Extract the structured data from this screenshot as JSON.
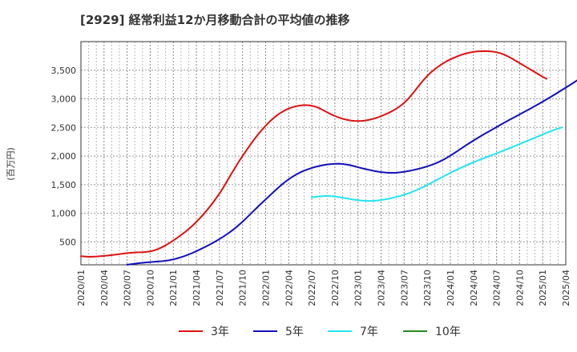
{
  "chart_data": {
    "type": "line",
    "title": "[2929]  経常利益12か月移動合計の平均値の推移",
    "ylabel": "(百万円)",
    "xlabel": "",
    "ylim": [
      100,
      4000
    ],
    "yticks": [
      500,
      1000,
      1500,
      2000,
      2500,
      3000,
      3500
    ],
    "ytick_labels": [
      "500",
      "1,000",
      "1,500",
      "2,000",
      "2,500",
      "3,000",
      "3,500"
    ],
    "x_start": "2020/01",
    "x_end": "2025/04",
    "xtick_labels": [
      "2020/01",
      "2020/04",
      "2020/07",
      "2020/10",
      "2021/01",
      "2021/04",
      "2021/07",
      "2021/10",
      "2022/01",
      "2022/04",
      "2022/07",
      "2022/10",
      "2023/01",
      "2023/04",
      "2023/07",
      "2023/10",
      "2024/01",
      "2024/04",
      "2024/07",
      "2024/10",
      "2025/01",
      "2025/04"
    ],
    "grid": true,
    "legend_position": "bottom",
    "series": [
      {
        "name": "3年",
        "color": "#dd1111",
        "start": "2020/01",
        "values": [
          250,
          245,
          240,
          242,
          245,
          250,
          255,
          262,
          270,
          278,
          286,
          295,
          305,
          310,
          315,
          318,
          320,
          325,
          335,
          350,
          375,
          405,
          440,
          480,
          525,
          570,
          620,
          670,
          725,
          785,
          850,
          920,
          995,
          1075,
          1160,
          1250,
          1345,
          1450,
          1565,
          1680,
          1790,
          1900,
          2000,
          2100,
          2195,
          2290,
          2375,
          2455,
          2530,
          2600,
          2660,
          2715,
          2760,
          2800,
          2830,
          2855,
          2872,
          2884,
          2890,
          2888,
          2880,
          2862,
          2835,
          2800,
          2765,
          2730,
          2700,
          2675,
          2652,
          2635,
          2622,
          2615,
          2612,
          2615,
          2622,
          2635,
          2652,
          2672,
          2697,
          2725,
          2755,
          2790,
          2830,
          2875,
          2930,
          2995,
          3075,
          3160,
          3245,
          3325,
          3400,
          3465,
          3520,
          3570,
          3615,
          3655,
          3690,
          3720,
          3748,
          3772,
          3792,
          3808,
          3820,
          3828,
          3832,
          3834,
          3832,
          3826,
          3814,
          3796,
          3772,
          3740,
          3705,
          3665,
          3625,
          3585,
          3545,
          3505,
          3465,
          3425,
          3385,
          3350
        ]
      },
      {
        "name": "5年",
        "color": "#1111bb",
        "start": "2020/07",
        "values": [
          100,
          110,
          120,
          128,
          135,
          142,
          148,
          153,
          158,
          163,
          170,
          180,
          195,
          212,
          232,
          255,
          280,
          308,
          338,
          370,
          403,
          437,
          472,
          510,
          550,
          592,
          637,
          685,
          737,
          793,
          853,
          917,
          983,
          1050,
          1115,
          1180,
          1243,
          1305,
          1368,
          1430,
          1490,
          1545,
          1595,
          1640,
          1680,
          1715,
          1745,
          1770,
          1793,
          1812,
          1828,
          1842,
          1853,
          1860,
          1865,
          1866,
          1862,
          1853,
          1840,
          1823,
          1805,
          1788,
          1772,
          1757,
          1743,
          1730,
          1720,
          1712,
          1708,
          1707,
          1710,
          1716,
          1725,
          1737,
          1750,
          1765,
          1782,
          1800,
          1820,
          1843,
          1868,
          1897,
          1930,
          1967,
          2007,
          2050,
          2095,
          2140,
          2185,
          2228,
          2270,
          2312,
          2352,
          2392,
          2430,
          2468,
          2506,
          2545,
          2583,
          2620,
          2656,
          2692,
          2728,
          2764,
          2800,
          2837,
          2874,
          2912,
          2950,
          2990,
          3030,
          3071,
          3112,
          3154,
          3196,
          3238,
          3280,
          3325,
          3350
        ]
      },
      {
        "name": "7年",
        "color": "#22e5ee",
        "start": "2022/07",
        "values": [
          1280,
          1288,
          1295,
          1300,
          1303,
          1300,
          1293,
          1283,
          1272,
          1260,
          1249,
          1238,
          1229,
          1222,
          1218,
          1217,
          1219,
          1224,
          1232,
          1243,
          1255,
          1270,
          1287,
          1305,
          1325,
          1347,
          1372,
          1400,
          1430,
          1462,
          1495,
          1530,
          1566,
          1602,
          1638,
          1673,
          1707,
          1740,
          1772,
          1803,
          1833,
          1862,
          1890,
          1917,
          1944,
          1970,
          1996,
          2022,
          2048,
          2074,
          2101,
          2128,
          2155,
          2182,
          2210,
          2238,
          2266,
          2294,
          2322,
          2350,
          2378,
          2405,
          2432,
          2458,
          2480,
          2500
        ]
      },
      {
        "name": "10年",
        "color": "#228822",
        "start": "2025/04",
        "values": []
      }
    ]
  }
}
